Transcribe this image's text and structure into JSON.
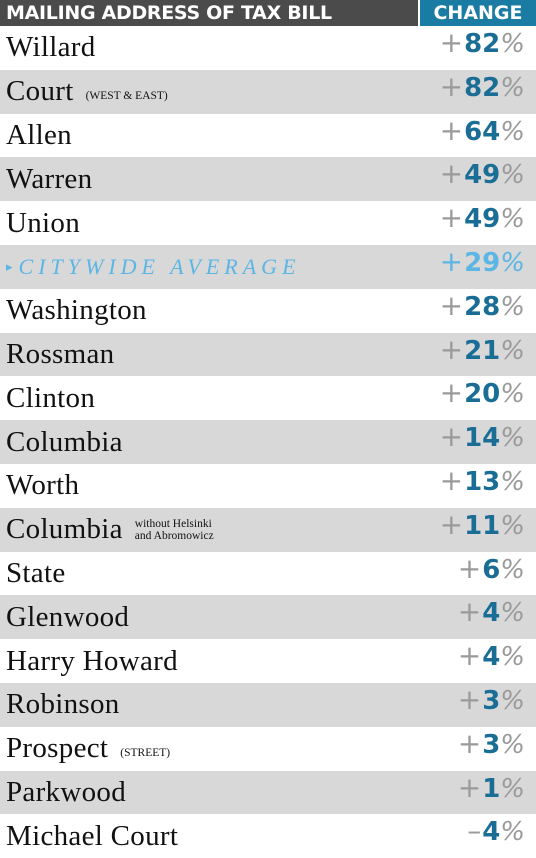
{
  "header": {
    "name_column": "MAILING ADDRESS OF TAX BILL",
    "change_column": "CHANGE"
  },
  "table": {
    "rows": [
      {
        "name": "Willard",
        "change": {
          "sign": "+",
          "value": "82",
          "unit": "%"
        }
      },
      {
        "name": "Court",
        "note": [
          "(WEST & EAST)"
        ],
        "change": {
          "sign": "+",
          "value": "82",
          "unit": "%"
        }
      },
      {
        "name": "Allen",
        "change": {
          "sign": "+",
          "value": "64",
          "unit": "%"
        }
      },
      {
        "name": "Warren",
        "change": {
          "sign": "+",
          "value": "49",
          "unit": "%"
        }
      },
      {
        "name": "Union",
        "change": {
          "sign": "+",
          "value": "49",
          "unit": "%"
        }
      },
      {
        "name": "CITYWIDE AVERAGE",
        "highlight": true,
        "change": {
          "sign": "+",
          "value": "29",
          "unit": "%"
        }
      },
      {
        "name": "Washington",
        "change": {
          "sign": "+",
          "value": "28",
          "unit": "%"
        }
      },
      {
        "name": "Rossman",
        "change": {
          "sign": "+",
          "value": "21",
          "unit": "%"
        }
      },
      {
        "name": "Clinton",
        "change": {
          "sign": "+",
          "value": "20",
          "unit": "%"
        }
      },
      {
        "name": "Columbia",
        "change": {
          "sign": "+",
          "value": "14",
          "unit": "%"
        }
      },
      {
        "name": "Worth",
        "change": {
          "sign": "+",
          "value": "13",
          "unit": "%"
        }
      },
      {
        "name": "Columbia",
        "note": [
          "without Helsinki",
          "and Abromowicz"
        ],
        "change": {
          "sign": "+",
          "value": "11",
          "unit": "%"
        }
      },
      {
        "name": "State",
        "change": {
          "sign": "+",
          "value": "6",
          "unit": "%"
        }
      },
      {
        "name": "Glenwood",
        "change": {
          "sign": "+",
          "value": "4",
          "unit": "%"
        }
      },
      {
        "name": "Harry Howard",
        "change": {
          "sign": "+",
          "value": "4",
          "unit": "%"
        }
      },
      {
        "name": "Robinson",
        "change": {
          "sign": "+",
          "value": "3",
          "unit": "%"
        }
      },
      {
        "name": "Prospect",
        "note": [
          "(STREET)"
        ],
        "change": {
          "sign": "+",
          "value": "3",
          "unit": "%"
        }
      },
      {
        "name": "Parkwood",
        "change": {
          "sign": "+",
          "value": "1",
          "unit": "%"
        }
      },
      {
        "name": "Michael Court",
        "change": {
          "sign": "–",
          "value": "4",
          "unit": "%"
        }
      }
    ]
  }
}
